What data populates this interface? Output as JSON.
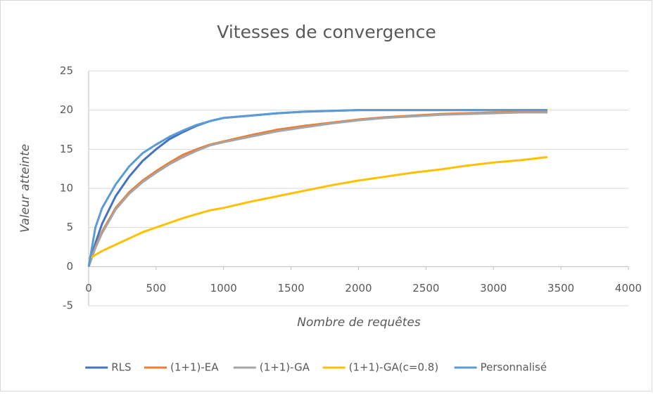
{
  "chart_data": {
    "type": "line",
    "title": "Vitesses de convergence",
    "x_label": "Nombre de requêtes",
    "y_label": "Valeur atteinte",
    "x": [
      0,
      50,
      100,
      200,
      300,
      400,
      500,
      600,
      700,
      800,
      900,
      1000,
      1200,
      1400,
      1600,
      1800,
      2000,
      2200,
      2400,
      2600,
      2800,
      3000,
      3200,
      3400
    ],
    "series": [
      {
        "name": "RLS",
        "color": "#4472c4",
        "values": [
          0,
          3,
          5.5,
          9,
          11.5,
          13.5,
          15,
          16.3,
          17.2,
          18,
          18.6,
          19,
          19.3,
          19.6,
          19.8,
          19.9,
          20,
          20,
          20,
          20,
          20,
          20,
          20,
          20
        ]
      },
      {
        "name": "(1+1)-EA",
        "color": "#ed7d31",
        "values": [
          0,
          2.5,
          4.5,
          7.5,
          9.5,
          11,
          12.2,
          13.3,
          14.3,
          15,
          15.6,
          16,
          16.8,
          17.5,
          18,
          18.4,
          18.8,
          19.1,
          19.3,
          19.5,
          19.6,
          19.7,
          19.8,
          19.8
        ]
      },
      {
        "name": "(1+1)-GA",
        "color": "#a5a5a5",
        "values": [
          0,
          2.4,
          4.3,
          7.3,
          9.3,
          10.8,
          12,
          13.1,
          14,
          14.8,
          15.5,
          15.9,
          16.6,
          17.3,
          17.8,
          18.3,
          18.7,
          19,
          19.2,
          19.4,
          19.5,
          19.6,
          19.7,
          19.7
        ]
      },
      {
        "name": "(1+1)-GA(c=0.8)",
        "color": "#ffc000",
        "values": [
          1,
          1.5,
          2,
          2.8,
          3.6,
          4.4,
          5,
          5.6,
          6.2,
          6.7,
          7.2,
          7.5,
          8.3,
          9,
          9.7,
          10.4,
          11,
          11.5,
          12,
          12.4,
          12.9,
          13.3,
          13.6,
          14
        ]
      },
      {
        "name": "Personnalisé",
        "color": "#5b9bd5",
        "values": [
          0,
          5,
          7.5,
          10.5,
          12.8,
          14.5,
          15.6,
          16.6,
          17.4,
          18.1,
          18.6,
          19,
          19.3,
          19.6,
          19.8,
          19.9,
          20,
          20,
          20,
          20,
          20,
          20,
          20,
          20
        ]
      }
    ],
    "xlim": [
      0,
      4000
    ],
    "xticks": [
      0,
      500,
      1000,
      1500,
      2000,
      2500,
      3000,
      3500,
      4000
    ],
    "ylim": [
      -5,
      25
    ],
    "yticks": [
      -5,
      0,
      5,
      10,
      15,
      20,
      25
    ],
    "grid": true,
    "legend": "bottom"
  }
}
